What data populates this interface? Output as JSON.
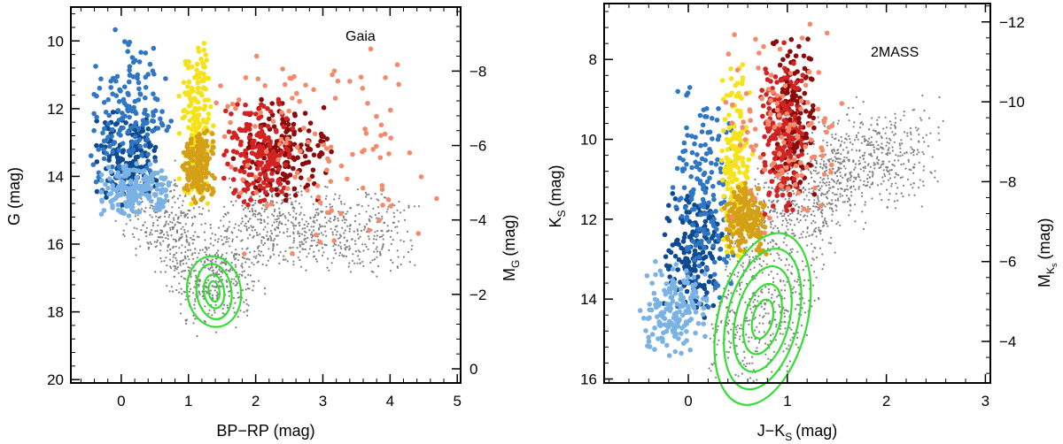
{
  "chart_data": [
    {
      "type": "scatter",
      "title": "Gaia",
      "xlabel": "BP−RP (mag)",
      "ylabel": "G (mag)",
      "ylabel_right": "M",
      "ylabel_right_sub": "G",
      "ylabel_right_unit": "(mag)",
      "xlim": [
        -0.75,
        5.05
      ],
      "ylim": [
        20.1,
        9.0
      ],
      "ylim_right": [
        0.38,
        -9.72
      ],
      "x_ticks": [
        0,
        1,
        2,
        3,
        4,
        5
      ],
      "x_tick_labels": [
        "0",
        "1",
        "2",
        "3",
        "4",
        "5"
      ],
      "y_ticks": [
        10,
        12,
        14,
        16,
        18,
        20
      ],
      "y_tick_labels": [
        "10",
        "12",
        "14",
        "16",
        "18",
        "20"
      ],
      "y_right_ticks": [
        0,
        -2,
        -4,
        -6,
        -8
      ],
      "y_right_tick_labels": [
        "0",
        "−2",
        "−4",
        "−6",
        "−8"
      ],
      "field_population": {
        "name": "field stars",
        "color": "#808080",
        "x_range": [
          -0.3,
          4.8
        ],
        "y_range": [
          14.0,
          19.6
        ],
        "ridge": [
          [
            0.3,
            14.6
          ],
          [
            0.9,
            15.9
          ],
          [
            1.4,
            17.6
          ],
          [
            2.0,
            15.3
          ],
          [
            3.0,
            15.5
          ],
          [
            4.0,
            15.7
          ]
        ]
      },
      "series": [
        {
          "name": "blue group 1",
          "color": "#0d4a8f",
          "x_range": [
            -0.4,
            0.6
          ],
          "y_range": [
            12.0,
            15.0
          ]
        },
        {
          "name": "blue group 2",
          "color": "#2f76c4",
          "x_range": [
            -0.5,
            0.8
          ],
          "y_range": [
            9.6,
            14.8
          ]
        },
        {
          "name": "blue group 3",
          "color": "#7ab2e6",
          "x_range": [
            -0.4,
            0.8
          ],
          "y_range": [
            13.6,
            15.2
          ]
        },
        {
          "name": "yellow group",
          "color": "#f5e21a",
          "x_range": [
            0.85,
            1.4
          ],
          "y_range": [
            9.7,
            15.0
          ]
        },
        {
          "name": "gold group",
          "color": "#d4a017",
          "x_range": [
            0.9,
            1.4
          ],
          "y_range": [
            12.5,
            14.9
          ]
        },
        {
          "name": "dark red group",
          "color": "#8b0a0a",
          "x_range": [
            1.6,
            3.2
          ],
          "y_range": [
            11.6,
            14.8
          ]
        },
        {
          "name": "red group",
          "color": "#d22222",
          "x_range": [
            1.5,
            2.6
          ],
          "y_range": [
            11.6,
            15.0
          ]
        },
        {
          "name": "salmon group",
          "color": "#f58a6a",
          "x_range": [
            1.0,
            5.0
          ],
          "y_range": [
            9.6,
            16.8
          ]
        }
      ],
      "contours": {
        "name": "density contours",
        "color": "#33dd33",
        "center": [
          1.38,
          17.4
        ],
        "levels": [
          {
            "rx": 0.08,
            "ry": 0.3
          },
          {
            "rx": 0.15,
            "ry": 0.5
          },
          {
            "rx": 0.26,
            "ry": 0.82
          },
          {
            "rx": 0.4,
            "ry": 1.05
          }
        ]
      }
    },
    {
      "type": "scatter",
      "title": "2MASS",
      "xlabel": "J−K",
      "xlabel_sub": "S",
      "xlabel_unit": "(mag)",
      "ylabel": "K",
      "ylabel_sub": "S",
      "ylabel_unit": "(mag)",
      "ylabel_right": "M",
      "ylabel_right_sub": "K",
      "ylabel_right_sub2": "s",
      "ylabel_right_unit": "(mag)",
      "xlim": [
        -0.85,
        3.05
      ],
      "ylim": [
        16.1,
        6.6
      ],
      "ylim_right": [
        -2.96,
        -12.46
      ],
      "x_ticks": [
        0,
        1,
        2,
        3
      ],
      "x_tick_labels": [
        "0",
        "1",
        "2",
        "3"
      ],
      "y_ticks": [
        8,
        10,
        12,
        14,
        16
      ],
      "y_tick_labels": [
        "8",
        "10",
        "12",
        "14",
        "16"
      ],
      "y_right_ticks": [
        -4,
        -6,
        -8,
        -10,
        -12
      ],
      "y_right_tick_labels": [
        "−4",
        "−6",
        "−8",
        "−10",
        "−12"
      ],
      "field_population": {
        "name": "field stars",
        "color": "#808080",
        "x_range": [
          -0.3,
          2.4
        ],
        "y_range": [
          9.5,
          15.8
        ],
        "ridge": [
          [
            0.6,
            15.5
          ],
          [
            0.8,
            14.0
          ],
          [
            1.0,
            12.0
          ],
          [
            1.3,
            11.0
          ],
          [
            1.8,
            10.5
          ],
          [
            2.2,
            10.2
          ]
        ]
      },
      "series": [
        {
          "name": "blue group 1",
          "color": "#0d4a8f",
          "x_range": [
            -0.3,
            0.4
          ],
          "y_range": [
            11.0,
            14.5
          ]
        },
        {
          "name": "blue group 2",
          "color": "#2f76c4",
          "x_range": [
            -0.2,
            0.5
          ],
          "y_range": [
            8.3,
            14.5
          ]
        },
        {
          "name": "blue group 3",
          "color": "#7ab2e6",
          "x_range": [
            -0.5,
            0.2
          ],
          "y_range": [
            13.0,
            15.5
          ]
        },
        {
          "name": "yellow group",
          "color": "#f5e21a",
          "x_range": [
            0.3,
            0.7
          ],
          "y_range": [
            8.0,
            13.2
          ]
        },
        {
          "name": "gold group",
          "color": "#d4a017",
          "x_range": [
            0.35,
            0.8
          ],
          "y_range": [
            11.0,
            13.0
          ]
        },
        {
          "name": "dark red group",
          "color": "#8b0a0a",
          "x_range": [
            0.8,
            1.3
          ],
          "y_range": [
            7.2,
            11.8
          ]
        },
        {
          "name": "red group",
          "color": "#d22222",
          "x_range": [
            0.7,
            1.2
          ],
          "y_range": [
            7.5,
            12.0
          ]
        },
        {
          "name": "salmon group",
          "color": "#f58a6a",
          "x_range": [
            0.3,
            1.6
          ],
          "y_range": [
            6.9,
            12.5
          ]
        }
      ],
      "contours": {
        "name": "density contours",
        "color": "#33dd33",
        "center": [
          0.75,
          14.5
        ],
        "levels": [
          {
            "rx": 0.1,
            "ry": 0.5
          },
          {
            "rx": 0.18,
            "ry": 0.9
          },
          {
            "rx": 0.27,
            "ry": 1.35
          },
          {
            "rx": 0.36,
            "ry": 1.8
          },
          {
            "rx": 0.45,
            "ry": 2.2
          }
        ]
      }
    }
  ]
}
